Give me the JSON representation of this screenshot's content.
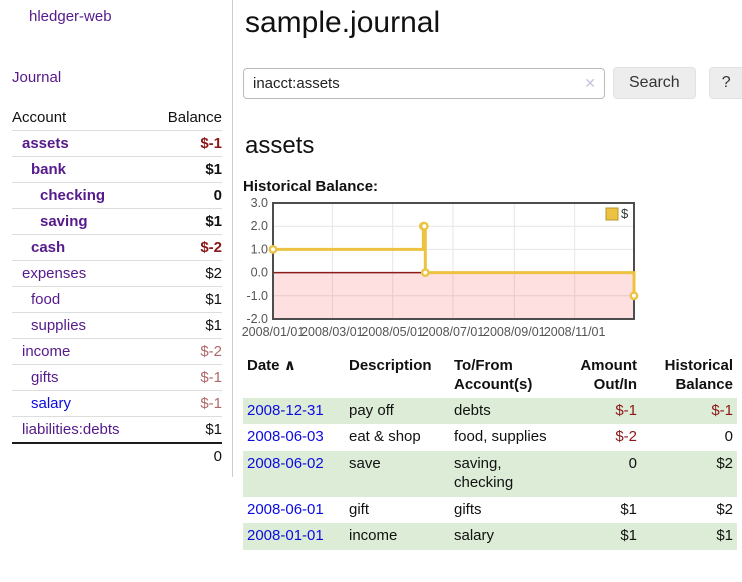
{
  "colors": {
    "brand_purple": "#551a8b",
    "link_blue": "#0b0be0",
    "negative_dark": "#8b1717",
    "negative_soft": "#b06868",
    "row_stripe_green": "#ddecd7",
    "chart_gold": "#edc240"
  },
  "sidebar": {
    "brand": "hledger-web",
    "nav_journal": "Journal",
    "accounts_table": {
      "headers": [
        "Account",
        "Balance"
      ],
      "rows": [
        {
          "name": "assets",
          "balance": "$-1",
          "depth": 1,
          "bold": true,
          "amount_class": "neg"
        },
        {
          "name": "bank",
          "balance": "$1",
          "depth": 2,
          "bold": true,
          "amount_class": ""
        },
        {
          "name": "checking",
          "balance": "0",
          "depth": 3,
          "bold": true,
          "amount_class": ""
        },
        {
          "name": "saving",
          "balance": "$1",
          "depth": 3,
          "bold": true,
          "amount_class": ""
        },
        {
          "name": "cash",
          "balance": "$-2",
          "depth": 2,
          "bold": true,
          "amount_class": "neg"
        },
        {
          "name": "expenses",
          "balance": "$2",
          "depth": 1,
          "bold": false,
          "amount_class": ""
        },
        {
          "name": "food",
          "balance": "$1",
          "depth": 2,
          "bold": false,
          "amount_class": ""
        },
        {
          "name": "supplies",
          "balance": "$1",
          "depth": 2,
          "bold": false,
          "amount_class": ""
        },
        {
          "name": "income",
          "balance": "$-2",
          "depth": 1,
          "bold": false,
          "amount_class": "negsoft"
        },
        {
          "name": "gifts",
          "balance": "$-1",
          "depth": 2,
          "bold": false,
          "amount_class": "negsoft"
        },
        {
          "name": "salary",
          "balance": "$-1",
          "depth": 2,
          "bold": false,
          "amount_class": "negsoft",
          "blue": true
        },
        {
          "name": "liabilities:debts",
          "balance": "$1",
          "depth": 1,
          "bold": false,
          "amount_class": ""
        }
      ],
      "total": "0"
    }
  },
  "header": {
    "title": "sample.journal",
    "search": {
      "value": "inacct:assets",
      "clear_icon": "✕",
      "search_button": "Search",
      "help_button": "?"
    }
  },
  "main": {
    "account_heading": "assets",
    "chart_title": "Historical Balance:"
  },
  "chart_data": {
    "type": "line",
    "title": "Historical Balance",
    "step": true,
    "grid": true,
    "legend_position": "top-right",
    "xlim": [
      "2008-01-01",
      "2008-12-31"
    ],
    "ylim": [
      -2,
      3
    ],
    "x_ticks": [
      "2008/01/01",
      "2008/03/01",
      "2008/05/01",
      "2008/07/01",
      "2008/09/01",
      "2008/11/01"
    ],
    "y_ticks": [
      3.0,
      2.0,
      1.0,
      0.0,
      -1.0,
      -2.0
    ],
    "series": [
      {
        "name": "$",
        "color": "#edc240",
        "points": [
          [
            "2008-01-01",
            1
          ],
          [
            "2008-06-01",
            2
          ],
          [
            "2008-06-02",
            2
          ],
          [
            "2008-06-03",
            0
          ],
          [
            "2008-12-31",
            -1
          ]
        ]
      }
    ],
    "grid_color": "#e6e6e6",
    "border_color": "#4d4d4d",
    "zero_line_color": "#8b1a1a",
    "negative_region_color": "rgba(255,0,0,0.12)",
    "tick_color": "#545454",
    "legend_swatch_border": "#b89730"
  },
  "register": {
    "headers": [
      {
        "label": "Date",
        "sort_indicator": "∧"
      },
      {
        "label": "Description"
      },
      {
        "label": "To/From Account(s)"
      },
      {
        "label": "Amount Out/In"
      },
      {
        "label": "Historical Balance"
      }
    ],
    "rows": [
      {
        "date": "2008-12-31",
        "description": "pay off",
        "accounts": "debts",
        "amount": "$-1",
        "amount_class": "neg",
        "balance": "$-1",
        "balance_class": "neg"
      },
      {
        "date": "2008-06-03",
        "description": "eat & shop",
        "accounts": "food, supplies",
        "amount": "$-2",
        "amount_class": "neg",
        "balance": "0",
        "balance_class": ""
      },
      {
        "date": "2008-06-02",
        "description": "save",
        "accounts": "saving, checking",
        "amount": "0",
        "amount_class": "",
        "balance": "$2",
        "balance_class": ""
      },
      {
        "date": "2008-06-01",
        "description": "gift",
        "accounts": "gifts",
        "amount": "$1",
        "amount_class": "",
        "balance": "$2",
        "balance_class": ""
      },
      {
        "date": "2008-01-01",
        "description": "income",
        "accounts": "salary",
        "amount": "$1",
        "amount_class": "",
        "balance": "$1",
        "balance_class": ""
      }
    ]
  }
}
